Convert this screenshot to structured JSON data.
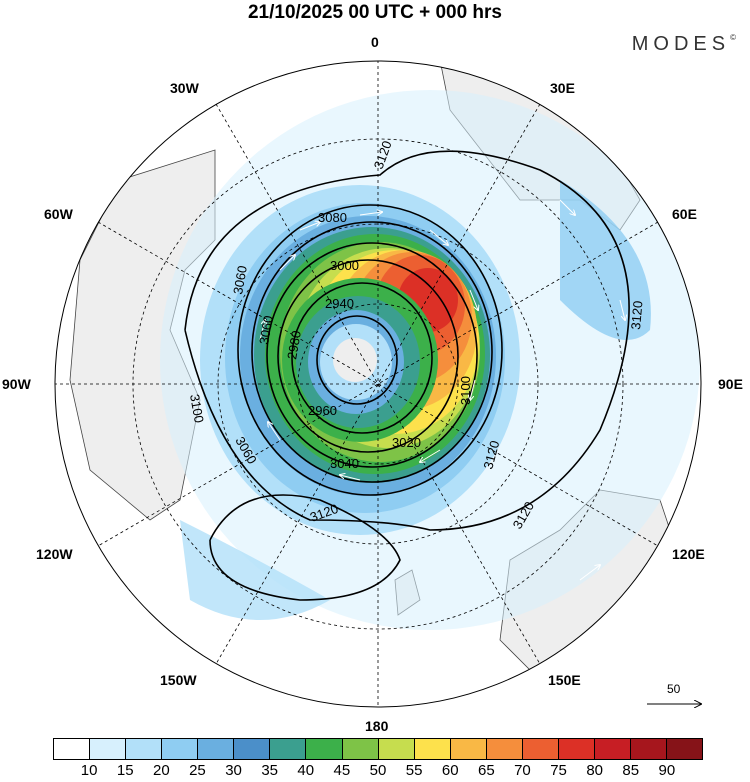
{
  "header": {
    "title": "21/10/2025  00 UTC  + 000 hrs",
    "brand": "MODES",
    "brand_mark": "©"
  },
  "map": {
    "projection": "south-polar-stereographic",
    "longitude_labels": {
      "top": "0",
      "top_right": "30E",
      "right_upper": "60E",
      "right": "90E",
      "right_lower": "120E",
      "bottom_right": "150E",
      "bottom": "180",
      "bottom_left": "150W",
      "left_lower": "120W",
      "left": "90W",
      "left_upper": "60W",
      "top_left": "30W"
    },
    "contour_labels": [
      "3120",
      "3080",
      "3060",
      "3000",
      "2940",
      "2980",
      "3060",
      "3100",
      "2960",
      "3060",
      "3040",
      "3020",
      "3100",
      "3120",
      "3120",
      "3120",
      "3120"
    ],
    "wind_reference_label": "50"
  },
  "colorbar": {
    "colors": [
      "#ffffff",
      "#d7f0fd",
      "#b2e0f9",
      "#8fcdf2",
      "#6aafe0",
      "#4b8fc9",
      "#3b9f8f",
      "#3cb04a",
      "#7ec347",
      "#c6dd4e",
      "#fde14c",
      "#f9b845",
      "#f58e3c",
      "#ec5f31",
      "#dc3026",
      "#c71e24",
      "#a6161d",
      "#861318"
    ],
    "labels": [
      "10",
      "15",
      "20",
      "25",
      "30",
      "35",
      "40",
      "45",
      "50",
      "55",
      "60",
      "65",
      "70",
      "75",
      "80",
      "85",
      "90"
    ]
  }
}
